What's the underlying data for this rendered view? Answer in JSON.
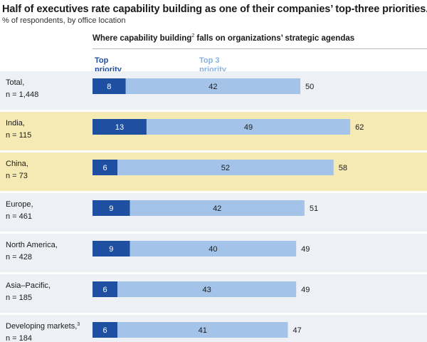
{
  "title": "Half of executives rate capability building as one of their companies’ top-three priorities.",
  "subtitle": "% of respondents,  by office location",
  "heading": {
    "text": "Where capability building",
    "sup": "2",
    "rest": " falls on organizations’ strategic agendas"
  },
  "legend": {
    "top": [
      "Top",
      "priority"
    ],
    "top3": [
      "Top 3",
      "priority"
    ]
  },
  "chart_data": {
    "type": "bar",
    "orientation": "horizontal",
    "stacked": true,
    "categories": [
      "Total",
      "India",
      "China",
      "Europe",
      "North America",
      "Asia–Pacific",
      "Developing markets"
    ],
    "category_labels": [
      [
        "Total,",
        "n = 1,448"
      ],
      [
        "India,",
        "n = 115"
      ],
      [
        "China,",
        "n = 73"
      ],
      [
        "Europe,",
        "n = 461"
      ],
      [
        "North America,",
        "n = 428"
      ],
      [
        "Asia–Pacific,",
        "n = 185"
      ],
      [
        "Developing markets,",
        "n = 184"
      ]
    ],
    "footnote_marks": [
      "",
      "",
      "",
      "",
      "",
      "",
      "3"
    ],
    "highlighted": [
      false,
      true,
      true,
      false,
      false,
      false,
      false
    ],
    "series": [
      {
        "name": "Top priority",
        "values": [
          8,
          13,
          6,
          9,
          9,
          6,
          6
        ],
        "color": "#1f4fa0"
      },
      {
        "name": "Top 3 priority",
        "values": [
          42,
          49,
          52,
          42,
          40,
          43,
          41
        ],
        "color": "#a3c3e8"
      }
    ],
    "totals": [
      50,
      62,
      58,
      51,
      49,
      49,
      47
    ],
    "colors": {
      "highlight_band": "#f5eab3",
      "band": "#edf0f4",
      "top_text": "#ffffff",
      "top3_text": "#1a1a1a"
    }
  }
}
